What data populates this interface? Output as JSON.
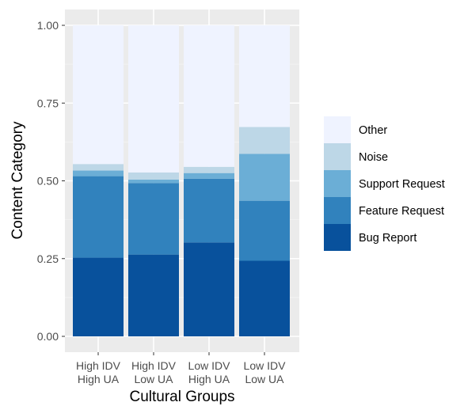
{
  "chart_data": {
    "type": "bar",
    "stacked": true,
    "title": "",
    "xlabel": "Cultural Groups",
    "ylabel": "Content Category",
    "ylim": [
      0,
      1.0
    ],
    "yticks": [
      0.0,
      0.25,
      0.5,
      0.75,
      1.0
    ],
    "ytick_labels": [
      "0.00",
      "0.25",
      "0.50",
      "0.75",
      "1.00"
    ],
    "grid": true,
    "legend_position": "right",
    "categories": [
      [
        "High IDV",
        "High UA"
      ],
      [
        "High IDV",
        "Low UA"
      ],
      [
        "Low IDV",
        "High UA"
      ],
      [
        "Low IDV",
        "Low UA"
      ]
    ],
    "series": [
      {
        "name": "Bug Report",
        "color": "#08519c",
        "values": [
          0.253,
          0.263,
          0.302,
          0.243
        ]
      },
      {
        "name": "Feature Request",
        "color": "#3182bd",
        "values": [
          0.262,
          0.23,
          0.205,
          0.193
        ]
      },
      {
        "name": "Support Request",
        "color": "#6baed6",
        "values": [
          0.018,
          0.011,
          0.018,
          0.151
        ]
      },
      {
        "name": "Noise",
        "color": "#bdd7e7",
        "values": [
          0.021,
          0.023,
          0.02,
          0.086
        ]
      },
      {
        "name": "Other",
        "color": "#eff3ff",
        "values": [
          0.446,
          0.473,
          0.455,
          0.327
        ]
      }
    ],
    "legend_order": [
      "Other",
      "Noise",
      "Support Request",
      "Feature Request",
      "Bug Report"
    ]
  }
}
